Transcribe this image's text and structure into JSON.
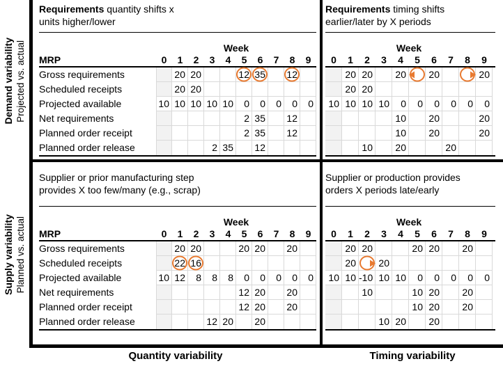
{
  "colors": {
    "accent": "#E87A30",
    "grid_line": "#D9D9D9",
    "shaded_cell": "#F2F2F2",
    "axis": "#000000"
  },
  "y_axis": {
    "top": {
      "title": "Demand variability",
      "subtitle": "Projected vs. actual"
    },
    "bottom": {
      "title": "Supply variability",
      "subtitle": "Planned vs. actual"
    }
  },
  "x_axis": {
    "left": "Quantity variability",
    "right": "Timing variability"
  },
  "mrp": {
    "corner": "MRP",
    "week": "Week",
    "weeks": [
      "0",
      "1",
      "2",
      "3",
      "4",
      "5",
      "6",
      "7",
      "8",
      "9"
    ],
    "row_labels": [
      "Gross requirements",
      "Scheduled receipts",
      "Projected available",
      "Net requirements",
      "Planned order receipt",
      "Planned order release"
    ]
  },
  "quadrants": [
    {
      "id": "demand-quantity",
      "title": {
        "lead": "Requirements",
        "line1": " quantity shifts x",
        "line2": "units higher/lower"
      },
      "show_row_labels": true,
      "cells": [
        [
          "",
          "20",
          "20",
          "",
          "",
          "12",
          "35",
          "",
          "12",
          ""
        ],
        [
          "",
          "20",
          "20",
          "",
          "",
          "",
          "",
          "",
          "",
          ""
        ],
        [
          "10",
          "10",
          "10",
          "10",
          "10",
          "0",
          "0",
          "0",
          "0",
          "0"
        ],
        [
          "",
          "",
          "",
          "",
          "",
          "2",
          "35",
          "",
          "12",
          ""
        ],
        [
          "",
          "",
          "",
          "",
          "",
          "2",
          "35",
          "",
          "12",
          ""
        ],
        [
          "",
          "",
          "",
          "2",
          "35",
          "",
          "12",
          "",
          "",
          ""
        ]
      ],
      "markers": [
        {
          "row": 0,
          "col": 5,
          "kind": "circle"
        },
        {
          "row": 0,
          "col": 6,
          "kind": "circle"
        },
        {
          "row": 0,
          "col": 8,
          "kind": "circle"
        }
      ]
    },
    {
      "id": "demand-timing",
      "title": {
        "lead": "Requirements",
        "line1": " timing shifts",
        "line2": "earlier/later by X periods"
      },
      "show_row_labels": false,
      "cells": [
        [
          "",
          "20",
          "20",
          "",
          "20",
          "",
          "20",
          "",
          "",
          "20"
        ],
        [
          "",
          "20",
          "20",
          "",
          "",
          "",
          "",
          "",
          "",
          ""
        ],
        [
          "10",
          "10",
          "10",
          "10",
          "0",
          "0",
          "0",
          "0",
          "0",
          "0"
        ],
        [
          "",
          "",
          "",
          "",
          "10",
          "",
          "20",
          "",
          "",
          "20"
        ],
        [
          "",
          "",
          "",
          "",
          "10",
          "",
          "20",
          "",
          "",
          "20"
        ],
        [
          "",
          "",
          "10",
          "",
          "20",
          "",
          "",
          "20",
          "",
          ""
        ]
      ],
      "markers": [
        {
          "row": 0,
          "col": 5,
          "kind": "circle-arrow-left"
        },
        {
          "row": 0,
          "col": 8,
          "kind": "circle-arrow-right"
        }
      ]
    },
    {
      "id": "supply-quantity",
      "title": {
        "lead": "",
        "line1": "Supplier or prior manufacturing step",
        "line2": "provides X too few/many (e.g., scrap)"
      },
      "show_row_labels": true,
      "cells": [
        [
          "",
          "20",
          "20",
          "",
          "",
          "20",
          "20",
          "",
          "20",
          ""
        ],
        [
          "",
          "22",
          "16",
          "",
          "",
          "",
          "",
          "",
          "",
          ""
        ],
        [
          "10",
          "12",
          "8",
          "8",
          "8",
          "0",
          "0",
          "0",
          "0",
          "0"
        ],
        [
          "",
          "",
          "",
          "",
          "",
          "12",
          "20",
          "",
          "20",
          ""
        ],
        [
          "",
          "",
          "",
          "",
          "",
          "12",
          "20",
          "",
          "20",
          ""
        ],
        [
          "",
          "",
          "",
          "12",
          "20",
          "",
          "20",
          "",
          "",
          ""
        ]
      ],
      "markers": [
        {
          "row": 1,
          "col": 1,
          "kind": "circle"
        },
        {
          "row": 1,
          "col": 2,
          "kind": "circle"
        }
      ]
    },
    {
      "id": "supply-timing",
      "title": {
        "lead": "",
        "line1": "Supplier or production provides",
        "line2": "orders X periods late/early"
      },
      "show_row_labels": false,
      "cells": [
        [
          "",
          "20",
          "20",
          "",
          "",
          "20",
          "20",
          "",
          "20",
          ""
        ],
        [
          "",
          "20",
          "",
          "20",
          "",
          "",
          "",
          "",
          "",
          ""
        ],
        [
          "10",
          "10",
          "-10",
          "10",
          "10",
          "0",
          "0",
          "0",
          "0",
          "0"
        ],
        [
          "",
          "",
          "10",
          "",
          "",
          "10",
          "20",
          "",
          "20",
          ""
        ],
        [
          "",
          "",
          "",
          "",
          "",
          "10",
          "20",
          "",
          "20",
          ""
        ],
        [
          "",
          "",
          "",
          "10",
          "20",
          "",
          "20",
          "",
          "",
          ""
        ]
      ],
      "markers": [
        {
          "row": 1,
          "col": 2,
          "kind": "circle-arrow-right"
        }
      ]
    }
  ]
}
